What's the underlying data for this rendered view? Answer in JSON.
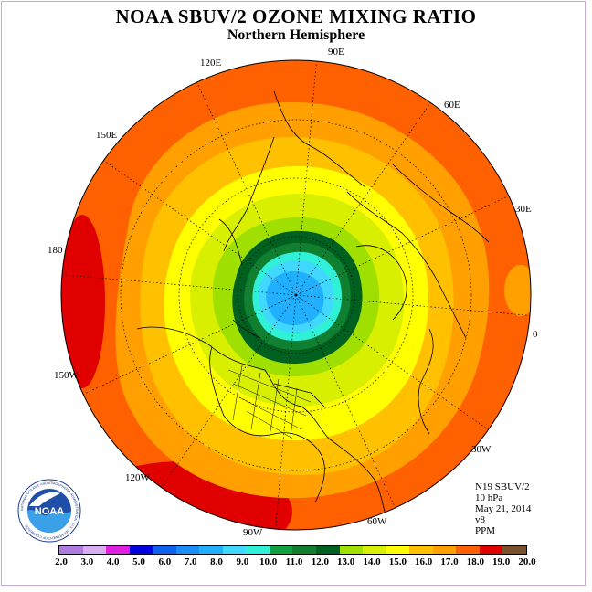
{
  "title": "NOAA SBUV/2 OZONE MIXING RATIO",
  "subtitle": "Northern Hemisphere",
  "longitude_labels": [
    "90E",
    "60E",
    "30E",
    "0",
    "30W",
    "60W",
    "90W",
    "120W",
    "150W",
    "180",
    "150E",
    "120E"
  ],
  "info": {
    "satellite": "N19 SBUV/2",
    "pressure": "10 hPa",
    "date": "May 21, 2014",
    "version": "v8",
    "units": "PPM"
  },
  "logo_text": "NOAA",
  "logo_ring_text": "NATIONAL OCEANIC AND ATMOSPHERIC ADMINISTRATION · U.S. DEPARTMENT OF COMMERCE",
  "colorbar": {
    "labels": [
      "2.0",
      "3.0",
      "4.0",
      "5.0",
      "6.0",
      "7.0",
      "8.0",
      "9.0",
      "10.0",
      "11.0",
      "12.0",
      "13.0",
      "14.0",
      "15.0",
      "16.0",
      "17.0",
      "18.0",
      "19.0",
      "20.0"
    ],
    "colors": [
      "#b07be0",
      "#d9aef0",
      "#e020e0",
      "#0000e0",
      "#1060f0",
      "#1a8ef5",
      "#20b0ff",
      "#40d8ff",
      "#30f0d8",
      "#10a040",
      "#108030",
      "#006020",
      "#a0e000",
      "#d8f000",
      "#ffff00",
      "#ffc000",
      "#ffa000",
      "#ff6000",
      "#e00000",
      "#7a5230"
    ]
  }
}
